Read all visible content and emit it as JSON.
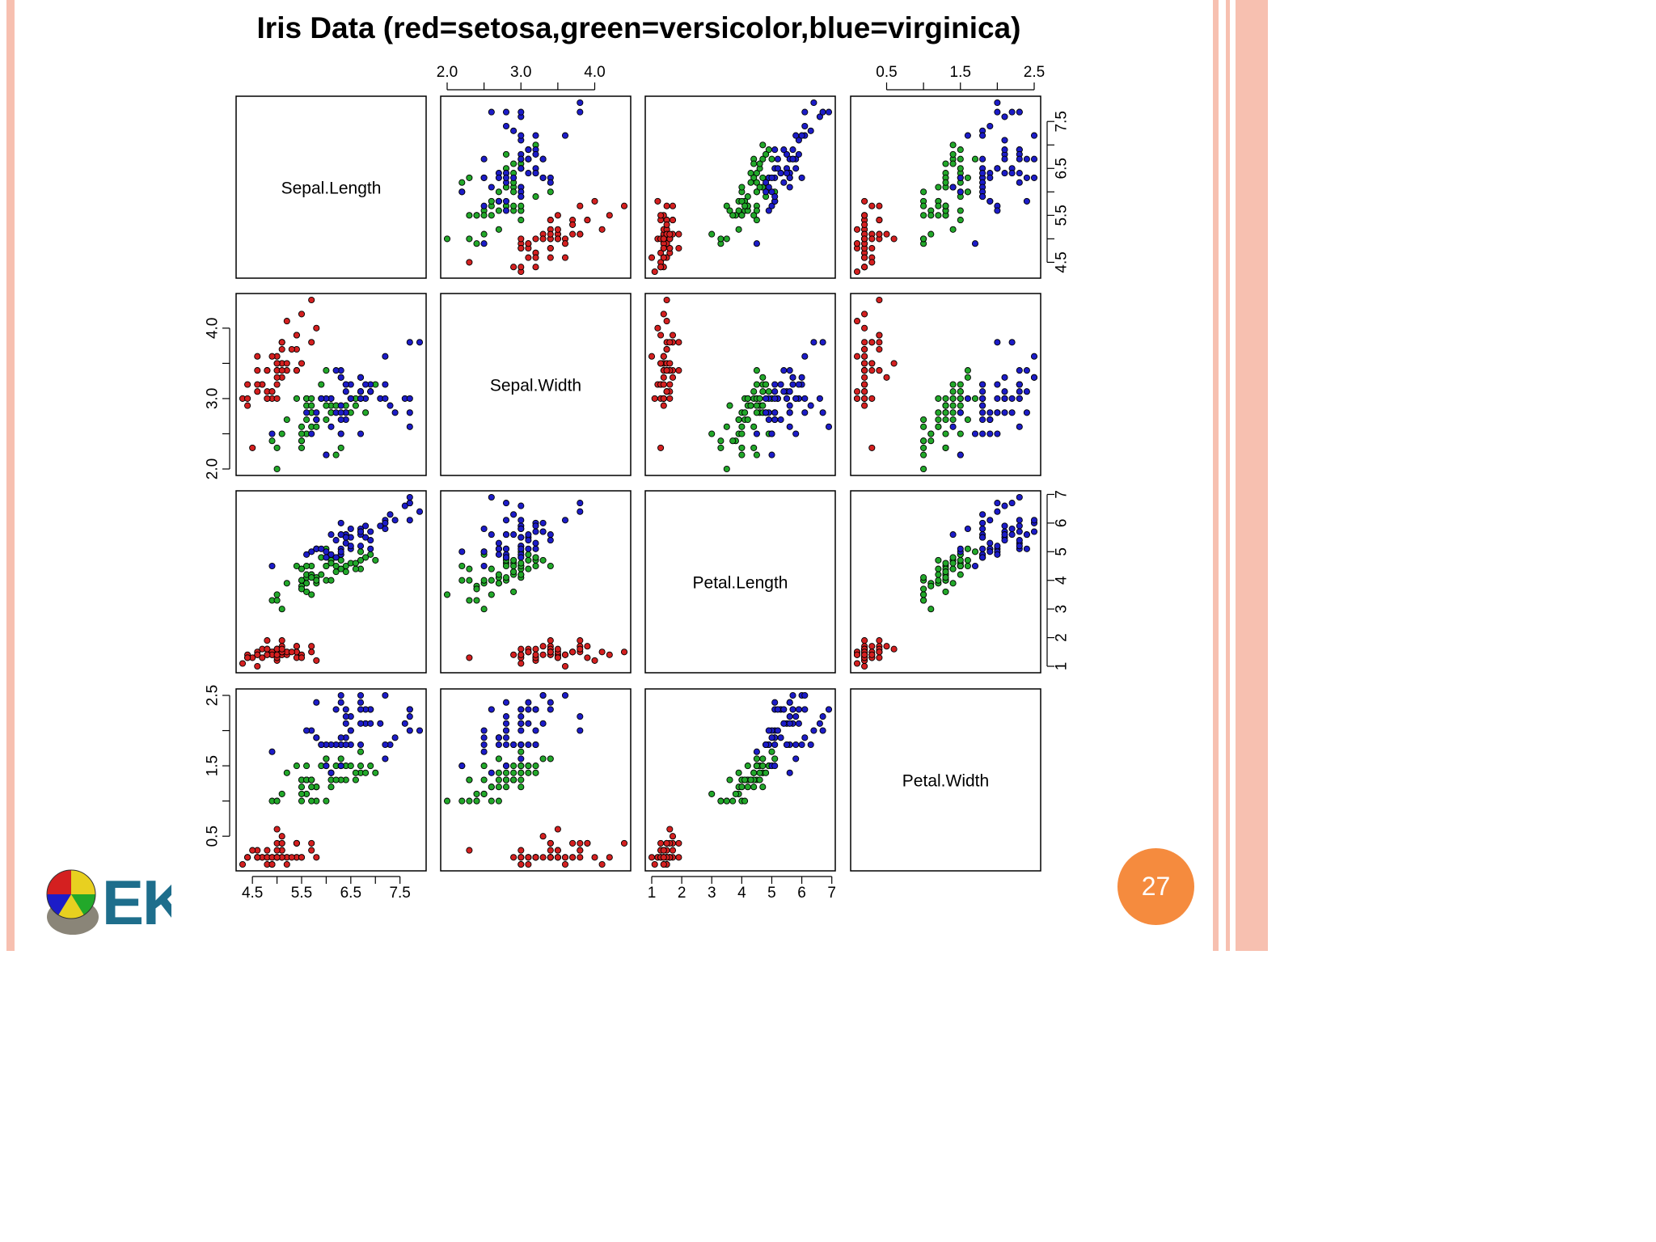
{
  "page_number": "27",
  "logo_text": "EK",
  "colors": {
    "setosa": "#d42020",
    "versicolor": "#22a82a",
    "virginica": "#1c1cc8",
    "badge": "#f58b3e",
    "stripe": "#f7c0b0"
  },
  "chart_data": {
    "type": "scatter",
    "title": "Iris Data (red=setosa,green=versicolor,blue=virginica)",
    "variables": [
      "Sepal.Length",
      "Sepal.Width",
      "Petal.Length",
      "Petal.Width"
    ],
    "ranges": [
      [
        4.3,
        7.9
      ],
      [
        2.0,
        4.4
      ],
      [
        1.0,
        6.9
      ],
      [
        0.1,
        2.5
      ]
    ],
    "ticks": [
      [
        4.5,
        5.5,
        6.5,
        7.5
      ],
      [
        2.0,
        3.0,
        4.0
      ],
      [
        1,
        2,
        3,
        4,
        5,
        6,
        7
      ],
      [
        0.5,
        1.5,
        2.5
      ]
    ],
    "tick_labels": [
      [
        "4.5",
        "5.5",
        "6.5",
        "7.5"
      ],
      [
        "2.0",
        "3.0",
        "4.0"
      ],
      [
        "1",
        "2",
        "3",
        "4",
        "5",
        "6",
        "7"
      ],
      [
        "0.5",
        "1.5",
        "2.5"
      ]
    ],
    "minor_ticks": [
      [
        5.0,
        6.0,
        7.0
      ],
      [
        2.5,
        3.5
      ],
      [],
      [
        1.0,
        2.0
      ]
    ],
    "grid": false,
    "series": [
      {
        "species": "setosa",
        "color": "#d42020",
        "points": [
          [
            5.1,
            3.5,
            1.4,
            0.2
          ],
          [
            4.9,
            3.0,
            1.4,
            0.2
          ],
          [
            4.7,
            3.2,
            1.3,
            0.2
          ],
          [
            4.6,
            3.1,
            1.5,
            0.2
          ],
          [
            5.0,
            3.6,
            1.4,
            0.2
          ],
          [
            5.4,
            3.9,
            1.7,
            0.4
          ],
          [
            4.6,
            3.4,
            1.4,
            0.3
          ],
          [
            5.0,
            3.4,
            1.5,
            0.2
          ],
          [
            4.4,
            2.9,
            1.4,
            0.2
          ],
          [
            4.9,
            3.1,
            1.5,
            0.1
          ],
          [
            5.4,
            3.7,
            1.5,
            0.2
          ],
          [
            4.8,
            3.4,
            1.6,
            0.2
          ],
          [
            4.8,
            3.0,
            1.4,
            0.1
          ],
          [
            4.3,
            3.0,
            1.1,
            0.1
          ],
          [
            5.8,
            4.0,
            1.2,
            0.2
          ],
          [
            5.7,
            4.4,
            1.5,
            0.4
          ],
          [
            5.4,
            3.9,
            1.3,
            0.4
          ],
          [
            5.1,
            3.5,
            1.4,
            0.3
          ],
          [
            5.7,
            3.8,
            1.7,
            0.3
          ],
          [
            5.1,
            3.8,
            1.5,
            0.3
          ],
          [
            5.4,
            3.4,
            1.7,
            0.2
          ],
          [
            5.1,
            3.7,
            1.5,
            0.4
          ],
          [
            4.6,
            3.6,
            1.0,
            0.2
          ],
          [
            5.1,
            3.3,
            1.7,
            0.5
          ],
          [
            4.8,
            3.4,
            1.9,
            0.2
          ],
          [
            5.0,
            3.0,
            1.6,
            0.2
          ],
          [
            5.0,
            3.4,
            1.6,
            0.4
          ],
          [
            5.2,
            3.5,
            1.5,
            0.2
          ],
          [
            5.2,
            3.4,
            1.4,
            0.2
          ],
          [
            4.7,
            3.2,
            1.6,
            0.2
          ],
          [
            4.8,
            3.1,
            1.6,
            0.2
          ],
          [
            5.4,
            3.4,
            1.5,
            0.4
          ],
          [
            5.2,
            4.1,
            1.5,
            0.1
          ],
          [
            5.5,
            4.2,
            1.4,
            0.2
          ],
          [
            4.9,
            3.1,
            1.5,
            0.2
          ],
          [
            5.0,
            3.2,
            1.2,
            0.2
          ],
          [
            5.5,
            3.5,
            1.3,
            0.2
          ],
          [
            4.9,
            3.6,
            1.4,
            0.1
          ],
          [
            4.4,
            3.0,
            1.3,
            0.2
          ],
          [
            5.1,
            3.4,
            1.5,
            0.2
          ],
          [
            5.0,
            3.5,
            1.3,
            0.3
          ],
          [
            4.5,
            2.3,
            1.3,
            0.3
          ],
          [
            4.4,
            3.2,
            1.3,
            0.2
          ],
          [
            5.0,
            3.5,
            1.6,
            0.6
          ],
          [
            5.1,
            3.8,
            1.9,
            0.4
          ],
          [
            4.8,
            3.0,
            1.4,
            0.3
          ],
          [
            5.1,
            3.8,
            1.6,
            0.2
          ],
          [
            4.6,
            3.2,
            1.4,
            0.2
          ],
          [
            5.3,
            3.7,
            1.5,
            0.2
          ],
          [
            5.0,
            3.3,
            1.4,
            0.2
          ]
        ]
      },
      {
        "species": "versicolor",
        "color": "#22a82a",
        "points": [
          [
            7.0,
            3.2,
            4.7,
            1.4
          ],
          [
            6.4,
            3.2,
            4.5,
            1.5
          ],
          [
            6.9,
            3.1,
            4.9,
            1.5
          ],
          [
            5.5,
            2.3,
            4.0,
            1.3
          ],
          [
            6.5,
            2.8,
            4.6,
            1.5
          ],
          [
            5.7,
            2.8,
            4.5,
            1.3
          ],
          [
            6.3,
            3.3,
            4.7,
            1.6
          ],
          [
            4.9,
            2.4,
            3.3,
            1.0
          ],
          [
            6.6,
            2.9,
            4.6,
            1.3
          ],
          [
            5.2,
            2.7,
            3.9,
            1.4
          ],
          [
            5.0,
            2.0,
            3.5,
            1.0
          ],
          [
            5.9,
            3.0,
            4.2,
            1.5
          ],
          [
            6.0,
            2.2,
            4.0,
            1.0
          ],
          [
            6.1,
            2.9,
            4.7,
            1.4
          ],
          [
            5.6,
            2.9,
            3.6,
            1.3
          ],
          [
            6.7,
            3.1,
            4.4,
            1.4
          ],
          [
            5.6,
            3.0,
            4.5,
            1.5
          ],
          [
            5.8,
            2.7,
            4.1,
            1.0
          ],
          [
            6.2,
            2.2,
            4.5,
            1.5
          ],
          [
            5.6,
            2.5,
            3.9,
            1.1
          ],
          [
            5.9,
            3.2,
            4.8,
            1.8
          ],
          [
            6.1,
            2.8,
            4.0,
            1.3
          ],
          [
            6.3,
            2.5,
            4.9,
            1.5
          ],
          [
            6.1,
            2.8,
            4.7,
            1.2
          ],
          [
            6.4,
            2.9,
            4.3,
            1.3
          ],
          [
            6.6,
            3.0,
            4.4,
            1.4
          ],
          [
            6.8,
            2.8,
            4.8,
            1.4
          ],
          [
            6.7,
            3.0,
            5.0,
            1.7
          ],
          [
            6.0,
            2.9,
            4.5,
            1.5
          ],
          [
            5.7,
            2.6,
            3.5,
            1.0
          ],
          [
            5.5,
            2.4,
            3.8,
            1.1
          ],
          [
            5.5,
            2.4,
            3.7,
            1.0
          ],
          [
            5.8,
            2.7,
            3.9,
            1.2
          ],
          [
            6.0,
            2.7,
            5.1,
            1.6
          ],
          [
            5.4,
            3.0,
            4.5,
            1.5
          ],
          [
            6.0,
            3.4,
            4.5,
            1.6
          ],
          [
            6.7,
            3.1,
            4.7,
            1.5
          ],
          [
            6.3,
            2.3,
            4.4,
            1.3
          ],
          [
            5.6,
            3.0,
            4.1,
            1.3
          ],
          [
            5.5,
            2.5,
            4.0,
            1.3
          ],
          [
            5.5,
            2.6,
            4.4,
            1.2
          ],
          [
            6.1,
            3.0,
            4.6,
            1.4
          ],
          [
            5.8,
            2.6,
            4.0,
            1.2
          ],
          [
            5.0,
            2.3,
            3.3,
            1.0
          ],
          [
            5.6,
            2.7,
            4.2,
            1.3
          ],
          [
            5.7,
            3.0,
            4.2,
            1.2
          ],
          [
            5.7,
            2.9,
            4.2,
            1.3
          ],
          [
            6.2,
            2.9,
            4.3,
            1.3
          ],
          [
            5.1,
            2.5,
            3.0,
            1.1
          ],
          [
            5.7,
            2.8,
            4.1,
            1.3
          ]
        ]
      },
      {
        "species": "virginica",
        "color": "#1c1cc8",
        "points": [
          [
            6.3,
            3.3,
            6.0,
            2.5
          ],
          [
            5.8,
            2.7,
            5.1,
            1.9
          ],
          [
            7.1,
            3.0,
            5.9,
            2.1
          ],
          [
            6.3,
            2.9,
            5.6,
            1.8
          ],
          [
            6.5,
            3.0,
            5.8,
            2.2
          ],
          [
            7.6,
            3.0,
            6.6,
            2.1
          ],
          [
            4.9,
            2.5,
            4.5,
            1.7
          ],
          [
            7.3,
            2.9,
            6.3,
            1.8
          ],
          [
            6.7,
            2.5,
            5.8,
            1.8
          ],
          [
            7.2,
            3.6,
            6.1,
            2.5
          ],
          [
            6.5,
            3.2,
            5.1,
            2.0
          ],
          [
            6.4,
            2.7,
            5.3,
            1.9
          ],
          [
            6.8,
            3.0,
            5.5,
            2.1
          ],
          [
            5.7,
            2.5,
            5.0,
            2.0
          ],
          [
            5.8,
            2.8,
            5.1,
            2.4
          ],
          [
            6.4,
            3.2,
            5.3,
            2.3
          ],
          [
            6.5,
            3.0,
            5.5,
            1.8
          ],
          [
            7.7,
            3.8,
            6.7,
            2.2
          ],
          [
            7.7,
            2.6,
            6.9,
            2.3
          ],
          [
            6.0,
            2.2,
            5.0,
            1.5
          ],
          [
            6.9,
            3.2,
            5.7,
            2.3
          ],
          [
            5.6,
            2.8,
            4.9,
            2.0
          ],
          [
            7.7,
            2.8,
            6.7,
            2.0
          ],
          [
            6.3,
            2.7,
            4.9,
            1.8
          ],
          [
            6.7,
            3.3,
            5.7,
            2.1
          ],
          [
            7.2,
            3.2,
            6.0,
            1.8
          ],
          [
            6.2,
            2.8,
            4.8,
            1.8
          ],
          [
            6.1,
            3.0,
            4.9,
            1.8
          ],
          [
            6.4,
            2.8,
            5.6,
            2.1
          ],
          [
            7.2,
            3.0,
            5.8,
            1.6
          ],
          [
            7.4,
            2.8,
            6.1,
            1.9
          ],
          [
            7.9,
            3.8,
            6.4,
            2.0
          ],
          [
            6.4,
            2.8,
            5.6,
            2.2
          ],
          [
            6.3,
            2.8,
            5.1,
            1.5
          ],
          [
            6.1,
            2.6,
            5.6,
            1.4
          ],
          [
            7.7,
            3.0,
            6.1,
            2.3
          ],
          [
            6.3,
            3.4,
            5.6,
            2.4
          ],
          [
            6.4,
            3.1,
            5.5,
            1.8
          ],
          [
            6.0,
            3.0,
            4.8,
            1.8
          ],
          [
            6.9,
            3.1,
            5.4,
            2.1
          ],
          [
            6.7,
            3.1,
            5.6,
            2.4
          ],
          [
            6.9,
            3.1,
            5.1,
            2.3
          ],
          [
            5.8,
            2.7,
            5.1,
            1.9
          ],
          [
            6.8,
            3.2,
            5.9,
            2.3
          ],
          [
            6.7,
            3.3,
            5.7,
            2.5
          ],
          [
            6.7,
            3.0,
            5.2,
            2.3
          ],
          [
            6.3,
            2.5,
            5.0,
            1.9
          ],
          [
            6.5,
            3.0,
            5.2,
            2.0
          ],
          [
            6.2,
            3.4,
            5.4,
            2.3
          ],
          [
            5.9,
            3.0,
            5.1,
            1.8
          ]
        ]
      }
    ]
  }
}
